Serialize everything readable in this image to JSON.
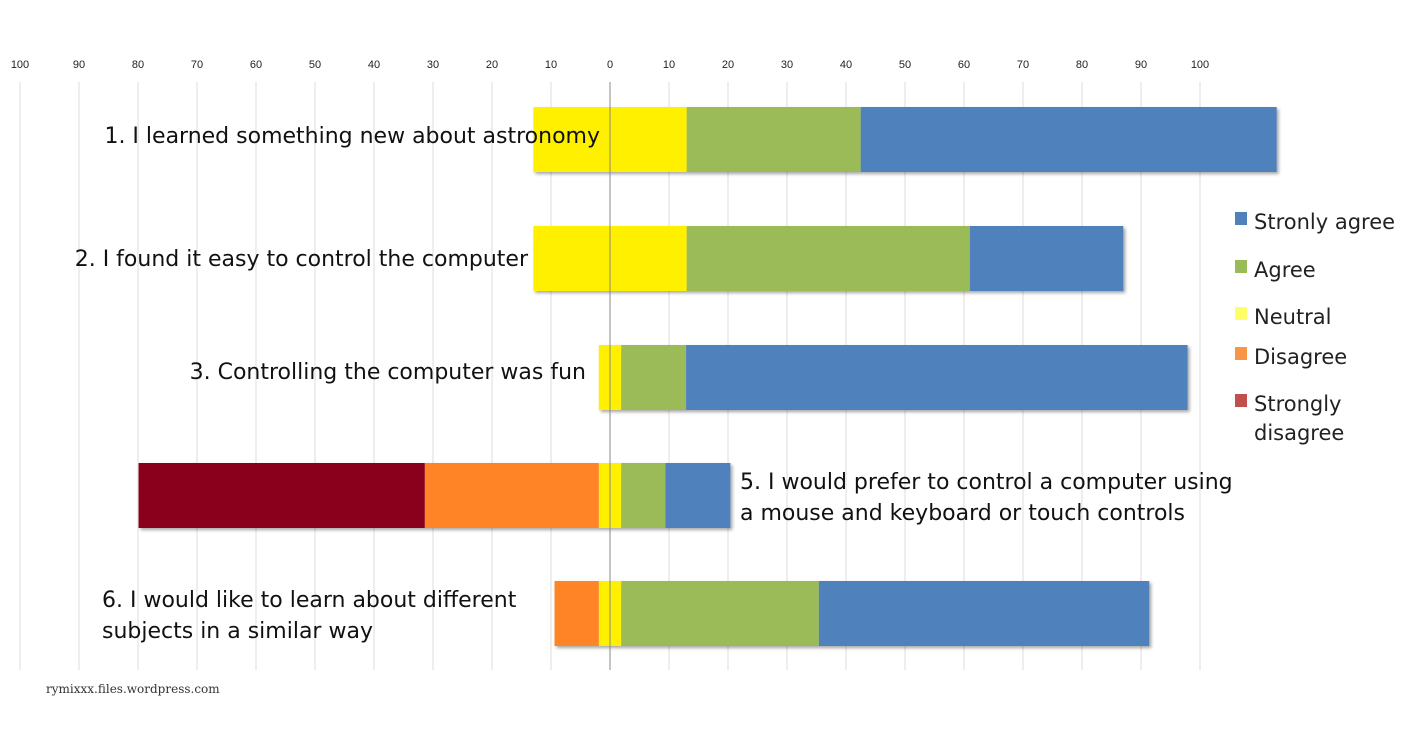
{
  "chart_data": {
    "type": "bar",
    "orientation": "horizontal",
    "stacked": "diverging",
    "title": "",
    "xlabel": "",
    "ylabel": "",
    "xlim": [
      -100,
      100
    ],
    "x_ticks": [
      100,
      90,
      80,
      70,
      60,
      50,
      40,
      30,
      20,
      10,
      0,
      10,
      20,
      30,
      40,
      50,
      60,
      70,
      80,
      90,
      100
    ],
    "grid": true,
    "legend_position": "right",
    "categories": [
      [
        "1. I learned something new about astronomy"
      ],
      [
        "2. I found it easy to control the computer"
      ],
      [
        "3. Controlling the computer was fun"
      ],
      [
        "5. I would prefer to control a computer using",
        "a mouse and keyboard or touch controls"
      ],
      [
        "6. I would like to learn about different",
        "subjects in a similar way"
      ]
    ],
    "series": [
      {
        "name": "Stronly agree",
        "color": "#4f81bd",
        "values": [
          70.5,
          26,
          85,
          11,
          56
        ]
      },
      {
        "name": "Agree",
        "color": "#9bbb59",
        "values": [
          29.5,
          48,
          11,
          7.5,
          33.5
        ]
      },
      {
        "name": "Neutral",
        "color": "#fff000",
        "values": [
          26,
          26,
          3.8,
          3.8,
          3.8
        ]
      },
      {
        "name": "Disagree",
        "color": "#ff8427",
        "values": [
          0,
          0,
          0,
          29.5,
          7.5
        ]
      },
      {
        "name": "Strongly disagree",
        "color": "#8a001a",
        "values": [
          0,
          0,
          0,
          48.5,
          0
        ]
      }
    ],
    "legend_labels": [
      [
        "Stronly agree"
      ],
      [
        "Agree"
      ],
      [
        "Neutral"
      ],
      [
        "Disagree"
      ],
      [
        "Strongly",
        "disagree"
      ]
    ],
    "legend_colors": [
      "#4f81bd",
      "#9bbb59",
      "#ffff66",
      "#f79646",
      "#c0504d"
    ]
  },
  "credit": "rymixxx.files.wordpress.com"
}
